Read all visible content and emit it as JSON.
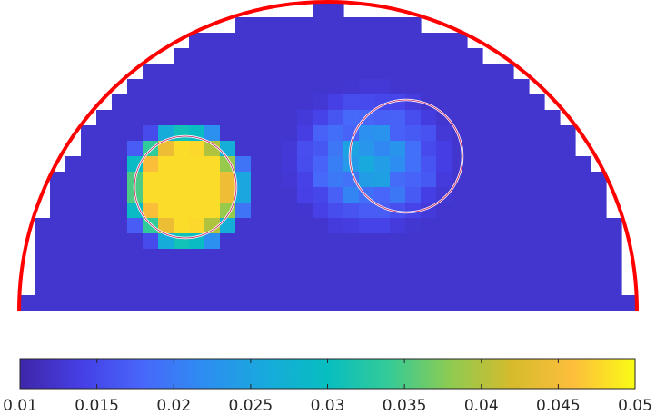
{
  "chart_data": {
    "type": "heatmap",
    "colormap": "parula",
    "clim": [
      0.01,
      0.05
    ],
    "colorbar": {
      "orientation": "horizontal",
      "location": "bottom",
      "ticks": [
        0.01,
        0.015,
        0.02,
        0.025,
        0.03,
        0.035,
        0.04,
        0.045,
        0.05
      ],
      "tick_labels": [
        "0.01",
        "0.015",
        "0.02",
        "0.025",
        "0.03",
        "0.035",
        "0.04",
        "0.045",
        "0.05"
      ]
    },
    "domain": "half-disk",
    "boundary_color": "#ff0000",
    "background_value": 0.0125,
    "inclusions": [
      {
        "name": "left",
        "peak_value": 0.048,
        "outline_color": "#ffffff"
      },
      {
        "name": "right",
        "peak_value": 0.032,
        "outline_color": "#ffffff"
      }
    ]
  }
}
